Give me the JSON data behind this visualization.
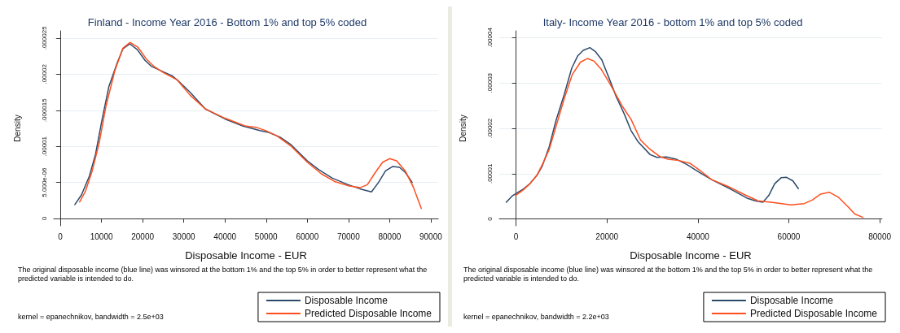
{
  "chart_data": [
    {
      "type": "line",
      "title": "Finland - Income Year 2016 - Bottom 1% and top 5% coded",
      "xlabel": "Disposable Income - EUR",
      "ylabel": "Density",
      "annotations": [
        "The original disposable income (blue line) was winsored at the bottom 1% and the top 5% in order to better represent what the predicted variable is intended to do.",
        "kernel = epanechnikov, bandwidth = 2.5e+03"
      ],
      "xlim": [
        -1600,
        91800
      ],
      "xticks": [
        0,
        10000,
        20000,
        30000,
        40000,
        50000,
        60000,
        70000,
        80000,
        90000
      ],
      "ylim": [
        -1e-06,
        2.6e-05
      ],
      "yticks": [
        0,
        {
          "value": 5e-06,
          "label": "5.000e-06"
        },
        {
          "value": 1e-05,
          "label": ".00001"
        },
        {
          "value": 1.5e-05,
          "label": ".000015"
        },
        {
          "value": 2e-05,
          "label": ".00002"
        },
        {
          "value": 2.5e-05,
          "label": ".000025"
        }
      ],
      "grid": "y",
      "legend": "bottom right",
      "marker": "none",
      "line_style": "solid",
      "series": [
        {
          "name": "Disposable Income",
          "color": "#2b4a6b",
          "x": [
            3530,
            5160,
            7060,
            8550,
            10100,
            11800,
            13700,
            15200,
            16900,
            18700,
            20600,
            22100,
            25100,
            27100,
            28600,
            31500,
            35200,
            40000,
            44400,
            48500,
            50800,
            53600,
            55900,
            60000,
            62700,
            66100,
            69900,
            72900,
            75600,
            77300,
            79000,
            80700,
            82400,
            83800,
            85500
          ],
          "values": [
            1.94e-06,
            3.3e-06,
            5.9e-06,
            8.9e-06,
            1.36e-05,
            1.83e-05,
            2.14e-05,
            2.35e-05,
            2.42e-05,
            2.34e-05,
            2.19e-05,
            2.11e-05,
            2.03e-05,
            1.98e-05,
            1.91e-05,
            1.75e-05,
            1.52e-05,
            1.38e-05,
            1.28e-05,
            1.22e-05,
            1.19e-05,
            1.12e-05,
            1.03e-05,
            8e-06,
            6.8e-06,
            5.6e-06,
            4.7e-06,
            4.1e-06,
            3.7e-06,
            5e-06,
            6.6e-06,
            7.2e-06,
            7.1e-06,
            6.4e-06,
            5e-06
          ]
        },
        {
          "name": "Predicted Disposable Income",
          "color": "#ff4f1f",
          "x": [
            4680,
            6040,
            7740,
            9440,
            11100,
            13200,
            15200,
            16900,
            18900,
            20900,
            22700,
            25100,
            28400,
            31500,
            35200,
            40000,
            45100,
            47800,
            49800,
            52500,
            55900,
            60000,
            63400,
            66800,
            70200,
            72900,
            74600,
            76300,
            78300,
            80000,
            81700,
            83800,
            85800,
            87700
          ],
          "values": [
            2.3e-06,
            3.7e-06,
            6.6e-06,
            1.05e-05,
            1.56e-05,
            2.04e-05,
            2.36e-05,
            2.44e-05,
            2.37e-05,
            2.21e-05,
            2.11e-05,
            2.02e-05,
            1.92e-05,
            1.71e-05,
            1.52e-05,
            1.39e-05,
            1.28e-05,
            1.26e-05,
            1.22e-05,
            1.15e-05,
            1.01e-05,
            7.8e-06,
            6.2e-06,
            5.1e-06,
            4.5e-06,
            4.3e-06,
            4.7e-06,
            6.2e-06,
            7.8e-06,
            8.3e-06,
            8e-06,
            6.6e-06,
            4.3e-06,
            1.4e-06
          ]
        }
      ]
    },
    {
      "type": "line",
      "title": "Italy- Income Year 2016 - bottom 1% and top 5% coded",
      "xlabel": "Disposable Income - EUR",
      "ylabel": "Density",
      "annotations": [
        "The original disposable income (blue line) was winsored at the bottom 1% and the top 5% in order to better represent what the predicted variable is intended to do.",
        "kernel = epanechnikov, bandwidth = 2.2e+03"
      ],
      "xlim": [
        -3700,
        80500
      ],
      "xticks": [
        0,
        20000,
        40000,
        60000,
        80000
      ],
      "ylim": [
        -1.5e-06,
        4.15e-05
      ],
      "yticks": [
        0,
        {
          "value": 1e-05,
          "label": ".00001"
        },
        {
          "value": 2e-05,
          "label": ".00002"
        },
        {
          "value": 3e-05,
          "label": ".00003"
        },
        {
          "value": 4e-05,
          "label": ".00004"
        }
      ],
      "grid": "y",
      "legend": "bottom right",
      "marker": "none",
      "line_style": "solid",
      "series": [
        {
          "name": "Disposable Income",
          "color": "#2b4a6b",
          "x": [
            -2160,
            -840,
            1560,
            3060,
            4560,
            5770,
            7270,
            8770,
            10570,
            12250,
            13570,
            14770,
            16220,
            17480,
            18860,
            20480,
            21980,
            23780,
            25290,
            26790,
            29490,
            30990,
            33090,
            35200,
            37600,
            40000,
            43000,
            47200,
            50800,
            52600,
            54300,
            55600,
            56900,
            58300,
            59500,
            60900,
            62100
          ],
          "values": [
            3.7e-06,
            5.1e-06,
            6.6e-06,
            7.8e-06,
            9.6e-06,
            1.17e-05,
            1.59e-05,
            2.17e-05,
            2.74e-05,
            3.33e-05,
            3.6e-05,
            3.72e-05,
            3.78e-05,
            3.69e-05,
            3.51e-05,
            3.1e-05,
            2.71e-05,
            2.32e-05,
            1.95e-05,
            1.71e-05,
            1.42e-05,
            1.36e-05,
            1.37e-05,
            1.32e-05,
            1.2e-05,
            1.05e-05,
            8.7e-06,
            6.6e-06,
            4.6e-06,
            4e-06,
            3.7e-06,
            5.2e-06,
            7.8e-06,
            9.1e-06,
            9.2e-06,
            8.4e-06,
            6.7e-06
          ]
        },
        {
          "name": "Predicted Disposable Income",
          "color": "#ff4f1f",
          "x": [
            -100,
            1560,
            3060,
            4560,
            5770,
            7270,
            9070,
            10570,
            12370,
            14170,
            15680,
            17180,
            18680,
            20480,
            21980,
            23480,
            25290,
            27390,
            29190,
            31590,
            33390,
            35800,
            38200,
            40600,
            43000,
            46600,
            50200,
            53200,
            56800,
            60400,
            63400,
            65200,
            67000,
            68900,
            70900,
            73000,
            74500,
            76300
          ],
          "values": [
            5.2e-06,
            6.4e-06,
            7.8e-06,
            9.6e-06,
            1.2e-05,
            1.53e-05,
            2.14e-05,
            2.65e-05,
            3.19e-05,
            3.46e-05,
            3.54e-05,
            3.48e-05,
            3.31e-05,
            3.01e-05,
            2.74e-05,
            2.47e-05,
            2.2e-05,
            1.74e-05,
            1.56e-05,
            1.38e-05,
            1.32e-05,
            1.29e-05,
            1.23e-05,
            1.06e-05,
            8.7e-06,
            7.2e-06,
            5.4e-06,
            4e-06,
            3.6e-06,
            3.1e-06,
            3.4e-06,
            4.2e-06,
            5.5e-06,
            5.9e-06,
            4.8e-06,
            2.7e-06,
            1.1e-06,
            3.6e-07
          ]
        }
      ]
    }
  ]
}
